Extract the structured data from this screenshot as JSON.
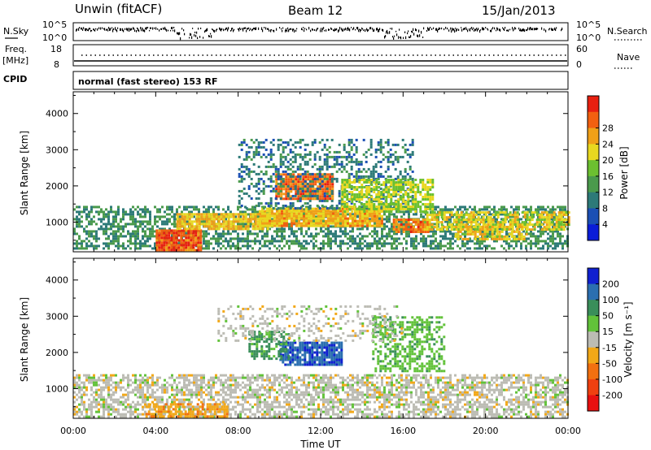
{
  "header": {
    "station": "Unwin (fitACF)",
    "beam": "Beam 12",
    "date": "15/Jan/2013"
  },
  "status_panel": {
    "nsky_label": "N.Sky",
    "nsky_ticks": [
      "10^5",
      "10^0"
    ],
    "nsearch_label": "N.Search",
    "nsearch_ticks": [
      "10^5",
      "10^0"
    ],
    "freq_label": "Freq.",
    "freq_unit": "[MHz]",
    "freq_ticks": [
      "18",
      "8"
    ],
    "nave_label": "Nave",
    "nave_ticks": [
      "60",
      "0"
    ],
    "cpid_label": "CPID",
    "cpid_text": "normal (fast stereo) 153 RF"
  },
  "chart_data": [
    {
      "type": "heatmap",
      "name": "power",
      "ylabel": "Slant Range [km]",
      "xlim": [
        0,
        24
      ],
      "ylim": [
        180,
        4600
      ],
      "yticks": [
        1000,
        2000,
        3000,
        4000
      ],
      "colorbar": {
        "label": "Power [dB]",
        "ticks": [
          "4",
          "8",
          "12",
          "16",
          "20",
          "24",
          "28"
        ],
        "range": [
          0,
          32
        ],
        "colors": [
          "#0a1cd8",
          "#1b4fb4",
          "#2d7a78",
          "#4a9a4c",
          "#6cc030",
          "#e8d820",
          "#f0a018",
          "#f26010",
          "#e82010"
        ]
      },
      "echo_regions": [
        {
          "t0": 0.0,
          "t1": 24.0,
          "r0": 250,
          "r1": 1450,
          "db": 10,
          "density": 0.55
        },
        {
          "t0": 4.0,
          "t1": 6.2,
          "r0": 200,
          "r1": 800,
          "db": 29,
          "density": 0.95
        },
        {
          "t0": 5.0,
          "t1": 9.5,
          "r0": 800,
          "r1": 1250,
          "db": 22,
          "density": 0.85
        },
        {
          "t0": 9.0,
          "t1": 15.0,
          "r0": 900,
          "r1": 1400,
          "db": 23,
          "density": 0.9
        },
        {
          "t0": 9.8,
          "t1": 12.6,
          "r0": 1650,
          "r1": 2350,
          "db": 27,
          "density": 0.9
        },
        {
          "t0": 8.0,
          "t1": 16.5,
          "r0": 1400,
          "r1": 3300,
          "db": 8,
          "density": 0.35
        },
        {
          "t0": 13.0,
          "t1": 17.5,
          "r0": 1300,
          "r1": 2200,
          "db": 18,
          "density": 0.7
        },
        {
          "t0": 15.5,
          "t1": 17.2,
          "r0": 700,
          "r1": 1100,
          "db": 27,
          "density": 0.85
        },
        {
          "t0": 17.0,
          "t1": 24.0,
          "r0": 800,
          "r1": 1300,
          "db": 20,
          "density": 0.7
        },
        {
          "t0": 18.5,
          "t1": 22.0,
          "r0": 500,
          "r1": 900,
          "db": 21,
          "density": 0.7
        }
      ]
    },
    {
      "type": "heatmap",
      "name": "velocity",
      "ylabel": "Slant Range [km]",
      "xlabel": "Time UT",
      "xlim": [
        0,
        24
      ],
      "ylim": [
        180,
        4600
      ],
      "xticks": [
        "00:00",
        "04:00",
        "08:00",
        "12:00",
        "16:00",
        "20:00",
        "00:00"
      ],
      "yticks": [
        1000,
        2000,
        3000,
        4000
      ],
      "colorbar": {
        "label": "Velocity [m s⁻¹]",
        "ticks": [
          "200",
          "100",
          "50",
          "15",
          "-15",
          "-50",
          "-100",
          "-200"
        ],
        "colors": [
          "#1020d0",
          "#2b6fb0",
          "#3a8e5a",
          "#62c23a",
          "#bcbcb4",
          "#f2a818",
          "#f27010",
          "#f04010",
          "#e81010"
        ]
      },
      "echo_regions": [
        {
          "t0": 0.0,
          "t1": 24.0,
          "r0": 200,
          "r1": 1400,
          "vel": 0,
          "density": 0.6
        },
        {
          "t0": 3.5,
          "t1": 7.5,
          "r0": 200,
          "r1": 600,
          "vel": -40,
          "density": 0.6
        },
        {
          "t0": 10.0,
          "t1": 13.0,
          "r0": 1650,
          "r1": 2300,
          "vel": 190,
          "density": 0.85
        },
        {
          "t0": 8.5,
          "t1": 10.5,
          "r0": 1800,
          "r1": 2600,
          "vel": 60,
          "density": 0.6
        },
        {
          "t0": 14.5,
          "t1": 18.0,
          "r0": 1500,
          "r1": 3000,
          "vel": 40,
          "density": 0.5
        },
        {
          "t0": 7.0,
          "t1": 16.0,
          "r0": 2300,
          "r1": 3300,
          "vel": 0,
          "density": 0.25
        }
      ]
    }
  ]
}
